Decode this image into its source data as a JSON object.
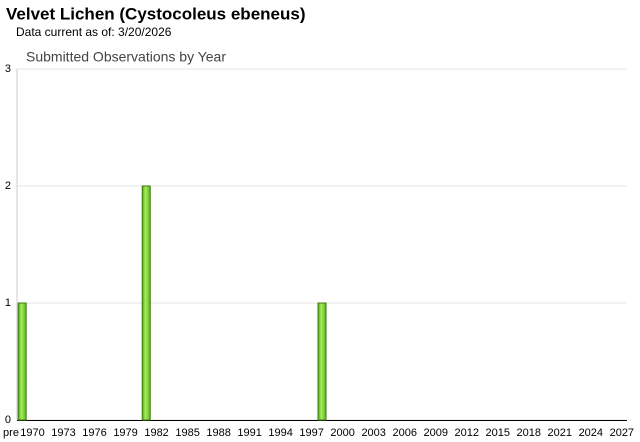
{
  "header": {
    "title": "Velvet Lichen   (Cystocoleus ebeneus)",
    "subtitle": "Data current as of: 3/20/2026"
  },
  "chart_data": {
    "type": "bar",
    "title": "Submitted Observations by Year",
    "categories": [
      "pre",
      "1970",
      null,
      null,
      "1973",
      null,
      null,
      "1976",
      null,
      null,
      "1979",
      null,
      null,
      "1982",
      null,
      null,
      "1985",
      null,
      null,
      "1988",
      null,
      null,
      "1991",
      null,
      null,
      "1994",
      null,
      null,
      "1997",
      null,
      null,
      "2000",
      null,
      null,
      "2003",
      null,
      null,
      "2006",
      null,
      null,
      "2009",
      null,
      null,
      "2012",
      null,
      null,
      "2015",
      null,
      null,
      "2018",
      null,
      null,
      "2021",
      null,
      null,
      "2024",
      null,
      null,
      "2027"
    ],
    "values": [
      1,
      0,
      0,
      0,
      0,
      0,
      0,
      0,
      0,
      0,
      0,
      0,
      2,
      0,
      0,
      0,
      0,
      0,
      0,
      0,
      0,
      0,
      0,
      0,
      0,
      0,
      0,
      0,
      0,
      1,
      0,
      0,
      0,
      0,
      0,
      0,
      0,
      0,
      0,
      0,
      0,
      0,
      0,
      0,
      0,
      0,
      0,
      0,
      0,
      0,
      0,
      0,
      0,
      0,
      0,
      0,
      0,
      0,
      0
    ],
    "color": "#7ed634",
    "ylim": [
      0,
      3
    ],
    "yticks": [
      0,
      1,
      2,
      3
    ],
    "grid": true
  }
}
